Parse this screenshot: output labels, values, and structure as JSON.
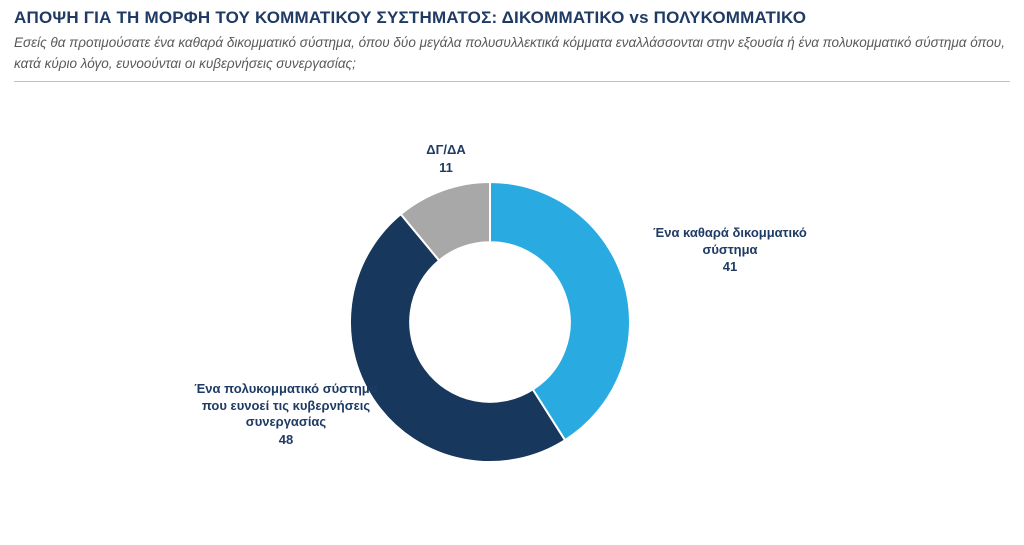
{
  "header": {
    "title": "ΑΠΟΨΗ ΓΙΑ ΤΗ ΜΟΡΦΗ ΤΟΥ ΚΟΜΜΑΤΙΚΟΥ ΣΥΣΤΗΜΑΤΟΣ: ΔΙΚΟΜΜΑΤΙΚΟ vs ΠΟΛΥΚΟΜΜΑΤΙΚΟ",
    "subtitle": "Εσείς θα προτιμούσατε ένα καθαρά δικομματικό σύστημα, όπου δύο μεγάλα πολυσυλλεκτικά κόμματα εναλλάσσονται στην εξουσία ή ένα πολυκομματικό σύστημα όπου, κατά κύριο λόγο, ευνοούνται οι κυβερνήσεις συνεργασίας;"
  },
  "chart_data": {
    "type": "pie",
    "subtype": "donut",
    "title": "ΑΠΟΨΗ ΓΙΑ ΤΗ ΜΟΡΦΗ ΤΟΥ ΚΟΜΜΑΤΙΚΟΥ ΣΥΣΤΗΜΑΤΟΣ: ΔΙΚΟΜΜΑΤΙΚΟ vs ΠΟΛΥΚΟΜΜΑΤΙΚΟ",
    "categories": [
      "Ένα καθαρά δικομματικό σύστημα",
      "Ένα πολυκομματικό σύστημα που ευνοεί τις κυβερνήσεις συνεργασίας",
      "ΔΓ/ΔΑ"
    ],
    "values": [
      41,
      48,
      11
    ],
    "colors": [
      "#29ABE2",
      "#17375D",
      "#A8A8A8"
    ],
    "start_angle_deg": 0,
    "direction": "clockwise",
    "inner_radius_ratio": 0.57,
    "legend_position": "none",
    "labels": [
      {
        "text": "Ένα καθαρά δικομματικό σύστημα",
        "value": 41
      },
      {
        "text": "Ένα πολυκομματικό σύστημα που ευνοεί τις κυβερνήσεις συνεργασίας",
        "value": 48
      },
      {
        "text": "ΔΓ/ΔΑ",
        "value": 11
      }
    ],
    "label_color": "#1F3B64"
  }
}
